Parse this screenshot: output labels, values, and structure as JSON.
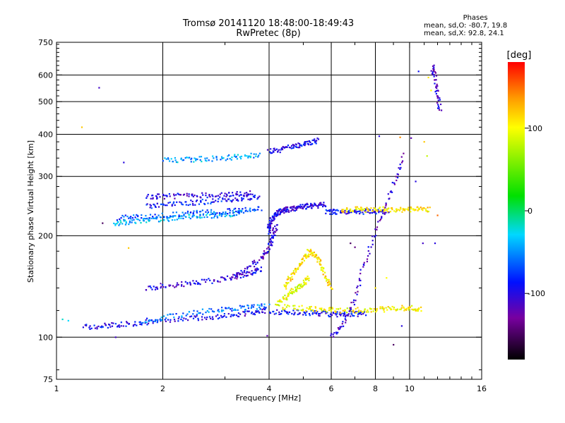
{
  "title": "Tromsø 20141120 18:48:00-18:49:43",
  "subtitle": "RwPretec (8p)",
  "stats": {
    "heading": "Phases",
    "line_o": "mean, sd,O: -80.7, 19.8",
    "line_x": "mean, sd,X:  92.8, 24.1"
  },
  "colorbar": {
    "unit": "[deg]",
    "range": [
      -180,
      180
    ],
    "ticks": [
      100,
      0,
      -100
    ]
  },
  "chart_data": {
    "type": "scatter",
    "xlabel": "Frequency [MHz]",
    "ylabel": "Stationary phase Virtual Height [km]",
    "xscale": "log",
    "yscale": "log",
    "xlim": [
      1,
      16
    ],
    "ylim": [
      75,
      750
    ],
    "xticks": [
      1,
      2,
      4,
      6,
      8,
      10,
      16
    ],
    "yticks": [
      75,
      100,
      200,
      300,
      400,
      500,
      600,
      750
    ],
    "grid": true,
    "traces": [
      {
        "name": "",
        "phase": -95,
        "x": [
          1.2,
          1.35,
          1.5,
          1.7,
          2.0,
          2.4,
          2.8,
          3.2,
          3.6,
          3.9
        ],
        "y": [
          107,
          108,
          109,
          110,
          112,
          114,
          115,
          117,
          118,
          120
        ]
      },
      {
        "name": "",
        "phase": -60,
        "x": [
          1.75,
          2.0,
          2.4,
          2.8,
          3.2,
          3.6,
          4.0
        ],
        "y": [
          112,
          114,
          118,
          120,
          122,
          123,
          124
        ]
      },
      {
        "name": "",
        "phase": -90,
        "x": [
          4.0,
          4.5,
          5.0,
          5.5,
          6.0,
          6.5,
          7.0,
          7.5
        ],
        "y": [
          119,
          119,
          118,
          118,
          117,
          117,
          117,
          118
        ]
      },
      {
        "name": "",
        "phase": 100,
        "x": [
          4.3,
          5.0,
          5.6,
          6.2,
          7.0,
          7.8,
          8.6,
          9.4,
          10.2,
          10.8
        ],
        "y": [
          123,
          122,
          121,
          120,
          120,
          121,
          121,
          122,
          122,
          121
        ]
      },
      {
        "name": "",
        "phase": -100,
        "x": [
          1.8,
          2.0,
          2.3,
          2.6,
          3.0,
          3.3,
          3.6,
          3.8
        ],
        "y": [
          140,
          142,
          144,
          146,
          149,
          152,
          156,
          160
        ]
      },
      {
        "name": "",
        "phase": -105,
        "x": [
          3.2,
          3.5,
          3.8,
          4.0,
          4.1,
          4.2
        ],
        "y": [
          150,
          160,
          172,
          185,
          200,
          215
        ]
      },
      {
        "name": "",
        "phase": -100,
        "x": [
          4.0,
          4.0,
          4.1,
          4.2,
          4.3,
          4.4,
          4.6,
          4.8,
          5.0,
          5.2,
          5.5,
          5.8
        ],
        "y": [
          205,
          215,
          225,
          232,
          236,
          238,
          240,
          242,
          244,
          245,
          246,
          247
        ]
      },
      {
        "name": "",
        "phase": 110,
        "x": [
          4.4,
          4.6,
          4.8,
          5.0,
          5.2,
          5.4,
          5.6,
          5.8,
          6.0
        ],
        "y": [
          140,
          150,
          160,
          170,
          180,
          175,
          165,
          150,
          140
        ]
      },
      {
        "name": "",
        "phase": 95,
        "x": [
          4.2,
          4.4,
          4.6,
          4.8,
          5.0,
          5.2
        ],
        "y": [
          125,
          130,
          135,
          140,
          145,
          150
        ]
      },
      {
        "name": "",
        "phase": -40,
        "x": [
          1.45,
          1.6,
          1.8,
          2.0,
          2.2,
          2.5,
          2.8,
          3.1,
          3.4
        ],
        "y": [
          218,
          220,
          222,
          224,
          226,
          228,
          230,
          232,
          235
        ]
      },
      {
        "name": "",
        "phase": -70,
        "x": [
          1.5,
          1.7,
          2.0,
          2.3,
          2.6,
          3.0,
          3.4,
          3.8
        ],
        "y": [
          225,
          228,
          230,
          232,
          234,
          236,
          238,
          240
        ]
      },
      {
        "name": "",
        "phase": -85,
        "x": [
          1.8,
          2.0,
          2.3,
          2.6,
          3.0,
          3.4,
          3.8
        ],
        "y": [
          245,
          247,
          250,
          252,
          255,
          258,
          262
        ]
      },
      {
        "name": "",
        "phase": -100,
        "x": [
          1.8,
          2.0,
          2.3,
          2.6,
          3.0,
          3.3,
          3.6
        ],
        "y": [
          262,
          262,
          263,
          264,
          265,
          266,
          268
        ]
      },
      {
        "name": "",
        "phase": -90,
        "x": [
          5.8,
          6.2,
          6.8,
          7.4,
          8.0,
          8.8
        ],
        "y": [
          236,
          235,
          235,
          236,
          236,
          236
        ]
      },
      {
        "name": "",
        "phase": 110,
        "x": [
          6.4,
          7.0,
          7.6,
          8.3,
          9.0,
          9.8,
          10.6,
          11.4
        ],
        "y": [
          238,
          240,
          238,
          240,
          238,
          240,
          239,
          240
        ]
      },
      {
        "name": "",
        "phase": -95,
        "x": [
          4.0,
          4.3,
          4.6,
          4.9,
          5.2,
          5.5
        ],
        "y": [
          355,
          360,
          366,
          372,
          378,
          384
        ]
      },
      {
        "name": "",
        "phase": -45,
        "x": [
          2.0,
          2.3,
          2.6,
          3.0,
          3.4,
          3.8
        ],
        "y": [
          335,
          336,
          338,
          341,
          344,
          348
        ]
      },
      {
        "name": "",
        "phase": -110,
        "x": [
          6.0,
          6.5,
          7.0,
          7.5,
          8.2,
          9.0,
          9.6
        ],
        "y": [
          100,
          110,
          130,
          170,
          220,
          280,
          350
        ]
      },
      {
        "name": "",
        "phase": -110,
        "x": [
          11.6,
          11.8,
          12.0,
          12.2
        ],
        "y": [
          630,
          600,
          520,
          470
        ]
      }
    ],
    "points": [
      {
        "x": 1.32,
        "y": 550,
        "phase": -110
      },
      {
        "x": 1.55,
        "y": 330,
        "phase": -100
      },
      {
        "x": 1.18,
        "y": 420,
        "phase": 120
      },
      {
        "x": 1.04,
        "y": 113,
        "phase": -20
      },
      {
        "x": 1.08,
        "y": 112,
        "phase": -30
      },
      {
        "x": 1.47,
        "y": 100,
        "phase": -110
      },
      {
        "x": 1.35,
        "y": 218,
        "phase": -150
      },
      {
        "x": 1.6,
        "y": 184,
        "phase": 120
      },
      {
        "x": 3.95,
        "y": 101,
        "phase": -120
      },
      {
        "x": 6.8,
        "y": 190,
        "phase": -150
      },
      {
        "x": 7.0,
        "y": 185,
        "phase": -140
      },
      {
        "x": 9.0,
        "y": 95,
        "phase": -150
      },
      {
        "x": 8.2,
        "y": 395,
        "phase": -100
      },
      {
        "x": 9.4,
        "y": 392,
        "phase": 140
      },
      {
        "x": 10.1,
        "y": 390,
        "phase": -120
      },
      {
        "x": 11.0,
        "y": 380,
        "phase": 120
      },
      {
        "x": 10.6,
        "y": 615,
        "phase": -90
      },
      {
        "x": 11.3,
        "y": 590,
        "phase": 110
      },
      {
        "x": 11.5,
        "y": 540,
        "phase": 100
      },
      {
        "x": 11.2,
        "y": 345,
        "phase": 80
      },
      {
        "x": 10.4,
        "y": 290,
        "phase": -100
      },
      {
        "x": 11.8,
        "y": 190,
        "phase": -100
      },
      {
        "x": 10.9,
        "y": 190,
        "phase": -110
      },
      {
        "x": 12.0,
        "y": 230,
        "phase": 150
      },
      {
        "x": 8.0,
        "y": 140,
        "phase": 110
      },
      {
        "x": 8.6,
        "y": 150,
        "phase": 100
      },
      {
        "x": 9.5,
        "y": 108,
        "phase": -100
      }
    ]
  }
}
